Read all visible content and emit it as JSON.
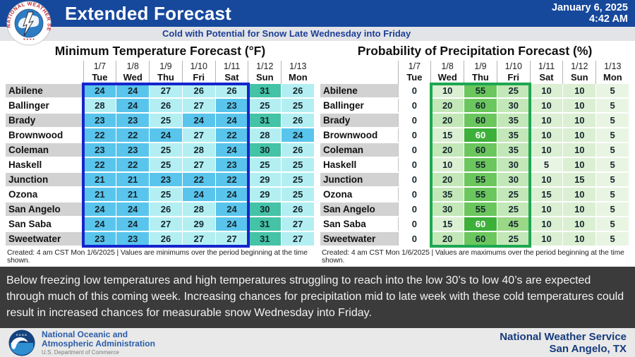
{
  "header": {
    "title": "Extended Forecast",
    "subtitle": "Cold with Potential for Snow Late Wednesday into Friday",
    "date": "January 6, 2025",
    "time": "4:42 AM",
    "logo_text": "NATIONAL WEATHER SERVICE"
  },
  "summary": "Below freezing low temperatures and high temperatures struggling to reach into the low 30’s to low 40’s are expected through much of this coming week. Increasing chances for precipitation mid to late week with these cold temperatures could result in increased chances for measurable snow Wednesday into Friday.",
  "footer": {
    "noaa_line1": "National Oceanic and",
    "noaa_line2": "Atmospheric Administration",
    "noaa_line3": "U.S. Department of Commerce",
    "noaa_logo_text": "noaa",
    "nws_line1": "National Weather Service",
    "nws_line2": "San Angelo, TX"
  },
  "chart_data": [
    {
      "type": "table",
      "title": "Minimum Temperature Forecast (°F)",
      "footnote": "Created: 4 am CST Mon 1/6/2025  |  Values are minimums over the period beginning at the time shown.",
      "columns_date": [
        "1/7",
        "1/8",
        "1/9",
        "1/10",
        "1/11",
        "1/12",
        "1/13"
      ],
      "columns_day": [
        "Tue",
        "Wed",
        "Thu",
        "Fri",
        "Sat",
        "Sun",
        "Mon"
      ],
      "locations": [
        "Abilene",
        "Ballinger",
        "Brady",
        "Brownwood",
        "Coleman",
        "Haskell",
        "Junction",
        "Ozona",
        "San Angelo",
        "San Saba",
        "Sweetwater"
      ],
      "values": [
        [
          24,
          24,
          27,
          26,
          26,
          31,
          26
        ],
        [
          28,
          24,
          26,
          27,
          23,
          25,
          25
        ],
        [
          23,
          23,
          25,
          24,
          24,
          31,
          26
        ],
        [
          22,
          22,
          24,
          27,
          22,
          28,
          24
        ],
        [
          23,
          23,
          25,
          28,
          24,
          30,
          26
        ],
        [
          22,
          22,
          25,
          27,
          23,
          25,
          25
        ],
        [
          21,
          21,
          23,
          22,
          22,
          29,
          25
        ],
        [
          21,
          21,
          25,
          24,
          24,
          29,
          25
        ],
        [
          24,
          24,
          26,
          28,
          24,
          30,
          26
        ],
        [
          24,
          24,
          27,
          29,
          24,
          31,
          27
        ],
        [
          23,
          23,
          26,
          27,
          27,
          31,
          27
        ]
      ],
      "scale": [
        {
          "max": 24,
          "color": "#59C5EC"
        },
        {
          "max": 29,
          "color": "#B3EFF2"
        },
        {
          "max": 99,
          "color": "#44C3A7"
        }
      ],
      "highlight": {
        "first_col": 0,
        "last_col": 4,
        "color": "#1525CE"
      },
      "emphasis": []
    },
    {
      "type": "table",
      "title": "Probability of Precipitation Forecast (%)",
      "footnote": "Created: 4 am CST Mon 1/6/2025  |  Values are maximums over the period beginning at the time shown.",
      "columns_date": [
        "1/7",
        "1/8",
        "1/9",
        "1/10",
        "1/11",
        "1/12",
        "1/13"
      ],
      "columns_day": [
        "Tue",
        "Wed",
        "Thu",
        "Fri",
        "Sat",
        "Sun",
        "Mon"
      ],
      "locations": [
        "Abilene",
        "Ballinger",
        "Brady",
        "Brownwood",
        "Coleman",
        "Haskell",
        "Junction",
        "Ozona",
        "San Angelo",
        "San Saba",
        "Sweetwater"
      ],
      "values": [
        [
          0,
          10,
          55,
          25,
          10,
          10,
          5
        ],
        [
          0,
          20,
          60,
          30,
          10,
          10,
          5
        ],
        [
          0,
          20,
          60,
          35,
          10,
          10,
          5
        ],
        [
          0,
          15,
          60,
          35,
          10,
          10,
          5
        ],
        [
          0,
          20,
          60,
          35,
          10,
          10,
          5
        ],
        [
          0,
          10,
          55,
          30,
          5,
          10,
          5
        ],
        [
          0,
          20,
          55,
          30,
          10,
          15,
          5
        ],
        [
          0,
          35,
          55,
          25,
          15,
          10,
          5
        ],
        [
          0,
          30,
          55,
          25,
          10,
          10,
          5
        ],
        [
          0,
          15,
          60,
          45,
          10,
          10,
          5
        ],
        [
          0,
          20,
          60,
          25,
          10,
          10,
          5
        ]
      ],
      "scale": [
        {
          "max": 0,
          "color": "#FFFFFF"
        },
        {
          "max": 5,
          "color": "#E9F5E3"
        },
        {
          "max": 15,
          "color": "#DBEFD3"
        },
        {
          "max": 35,
          "color": "#C3E7B8"
        },
        {
          "max": 45,
          "color": "#9AD786"
        },
        {
          "max": 100,
          "color": "#6BC75D"
        }
      ],
      "highlight": {
        "first_col": 1,
        "last_col": 3,
        "color": "#1EA751"
      },
      "emphasis": [
        {
          "row": 3,
          "col": 2,
          "color": "#3DB03A",
          "text_color": "#FFFFFF"
        },
        {
          "row": 9,
          "col": 2,
          "color": "#3DB03A",
          "text_color": "#FFFFFF"
        }
      ]
    }
  ]
}
